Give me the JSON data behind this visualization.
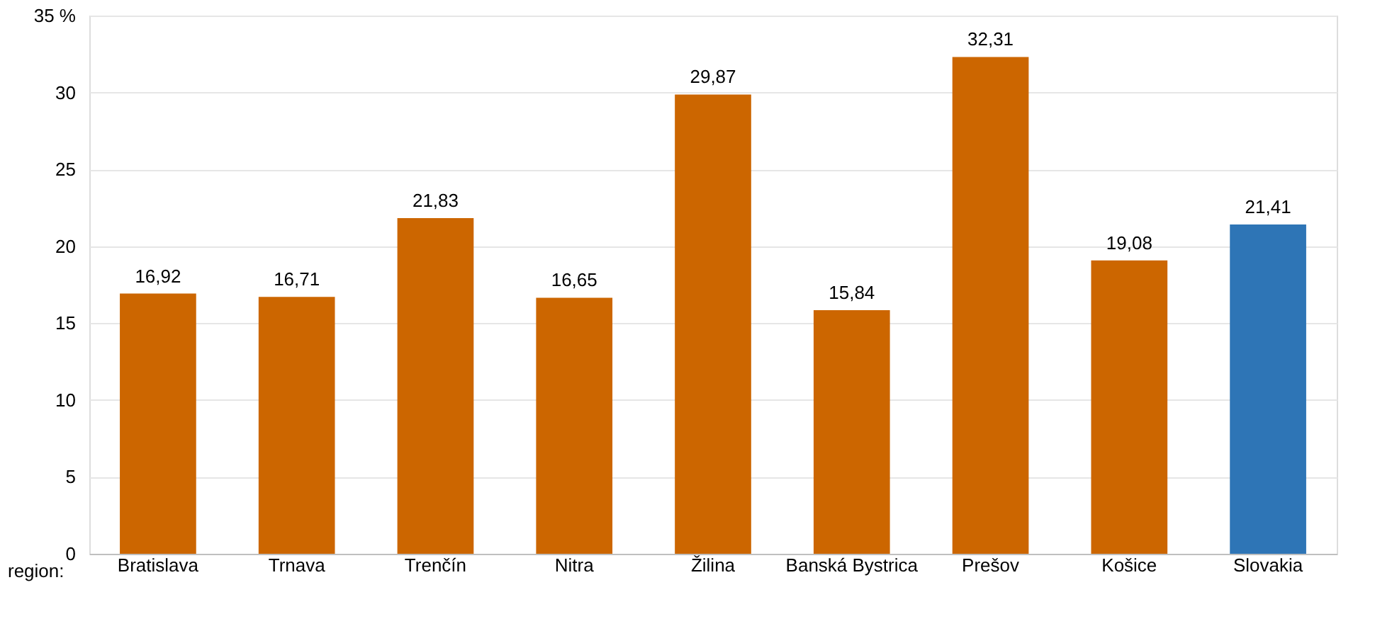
{
  "chart_data": {
    "type": "bar",
    "xlabel": "region:",
    "categories": [
      "Bratislava",
      "Trnava",
      "Trenčín",
      "Nitra",
      "Žilina",
      "Banská Bystrica",
      "Prešov",
      "Košice",
      "Slovakia"
    ],
    "values": [
      16.92,
      16.71,
      21.83,
      16.65,
      29.87,
      15.84,
      32.31,
      19.08,
      21.41
    ],
    "colors": [
      "#cc6600",
      "#cc6600",
      "#cc6600",
      "#cc6600",
      "#cc6600",
      "#cc6600",
      "#cc6600",
      "#cc6600",
      "#2e75b6"
    ],
    "value_labels": [
      "16,92",
      "16,71",
      "21,83",
      "16,65",
      "29,87",
      "15,84",
      "32,31",
      "19,08",
      "21,41"
    ],
    "ylim": [
      0,
      35
    ],
    "yticks": [
      0,
      5,
      10,
      15,
      20,
      25,
      30,
      {
        "value": 35,
        "label": "35 %"
      }
    ],
    "grid": "y"
  }
}
